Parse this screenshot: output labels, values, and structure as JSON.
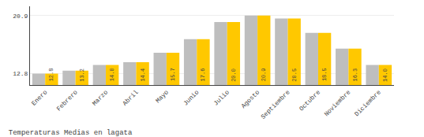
{
  "chart_data": {
    "type": "bar",
    "title": "Temperaturas Medias en lagata",
    "categories": [
      "Enero",
      "Febrero",
      "Marzo",
      "Abril",
      "Mayo",
      "Junio",
      "Julio",
      "Agosto",
      "Septiembre",
      "Octubre",
      "Noviembre",
      "Diciembre"
    ],
    "series": [
      {
        "color": "#BEBEBE",
        "values": [
          12.8,
          13.2,
          14.0,
          14.4,
          15.7,
          17.6,
          20.0,
          20.9,
          20.5,
          18.5,
          16.3,
          14.0
        ]
      },
      {
        "color": "#FFC800",
        "values": [
          12.8,
          13.2,
          14.0,
          14.4,
          15.7,
          17.6,
          20.0,
          20.9,
          20.5,
          18.5,
          16.3,
          14.0
        ],
        "value_labels": [
          "12.8",
          "13.2",
          "14.0",
          "14.4",
          "15.7",
          "17.6",
          "20.0",
          "20.9",
          "20.5",
          "18.5",
          "16.3",
          "14.0"
        ]
      }
    ],
    "ylim": [
      11.2,
      22.2
    ],
    "yticks": [
      12.8,
      20.9
    ],
    "grid": true,
    "data_labels": true
  }
}
